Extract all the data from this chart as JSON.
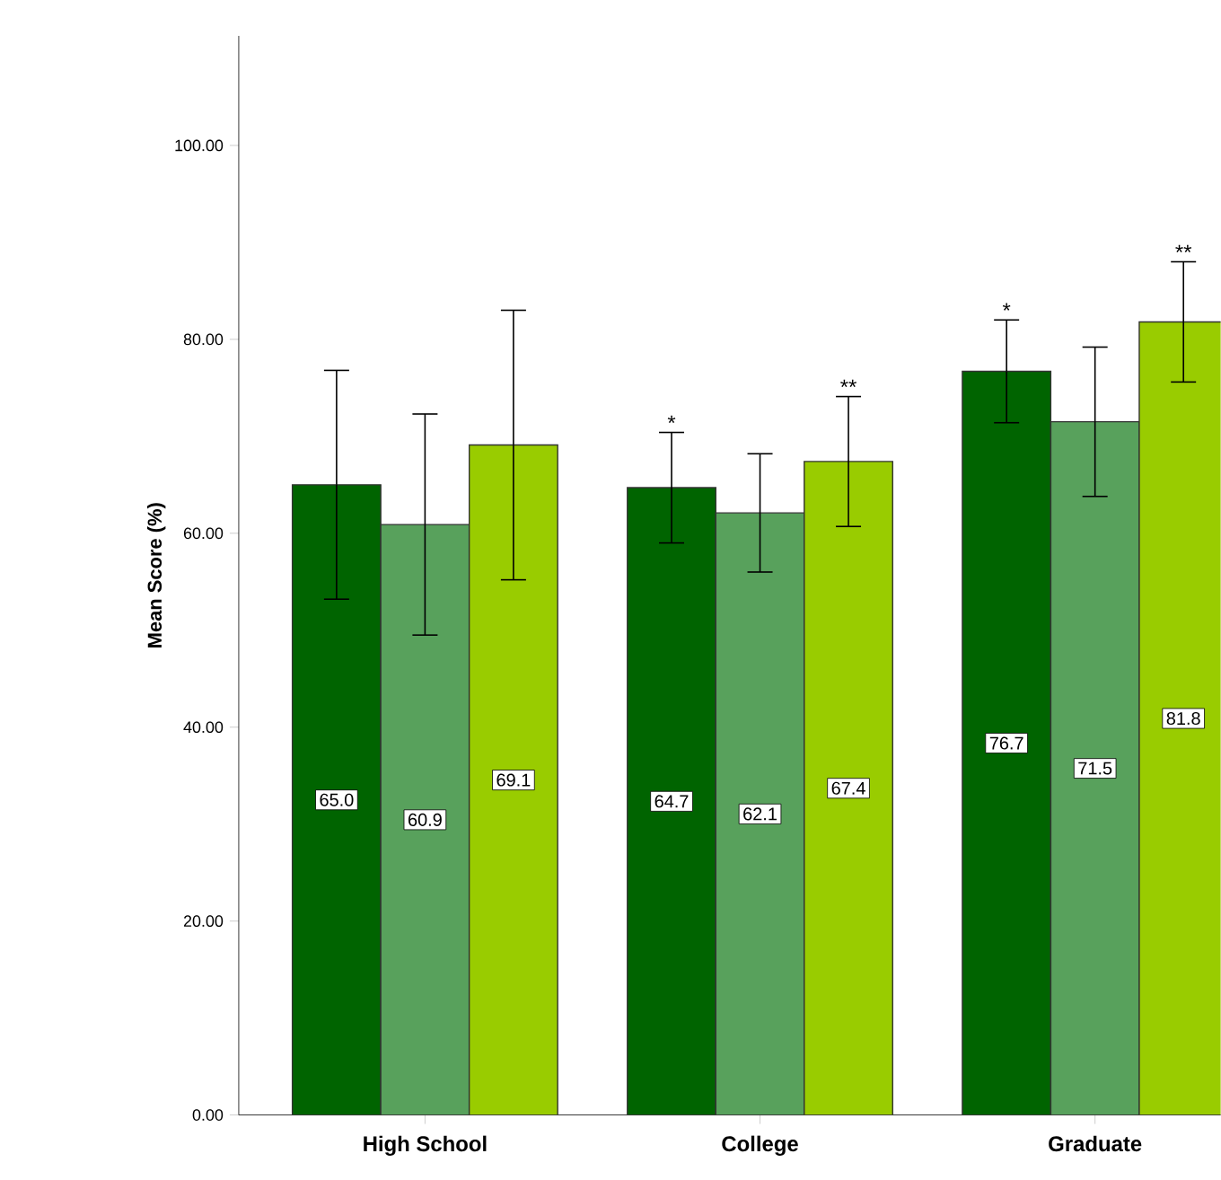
{
  "chart_data": {
    "type": "bar",
    "ylabel": "Mean Score (%)",
    "categories": [
      "High School",
      "College",
      "Graduate"
    ],
    "series": [
      {
        "color": "#006400",
        "values": [
          65.0,
          64.7,
          76.7
        ],
        "errors": [
          11.8,
          5.7,
          5.3
        ],
        "value_labels": [
          "65.0",
          "64.7",
          "76.7"
        ]
      },
      {
        "color": "#58a15c",
        "values": [
          60.9,
          62.1,
          71.5
        ],
        "errors": [
          11.4,
          6.1,
          7.7
        ],
        "value_labels": [
          "60.9",
          "62.1",
          "71.5"
        ]
      },
      {
        "color": "#99cc00",
        "values": [
          69.1,
          67.4,
          81.8
        ],
        "errors": [
          13.9,
          6.7,
          6.2
        ],
        "value_labels": [
          "69.1",
          "67.4",
          "81.8"
        ]
      }
    ],
    "ylim": [
      0,
      111.3
    ],
    "yticks": [
      {
        "value": 0,
        "label": "0.00"
      },
      {
        "value": 20,
        "label": "20.00"
      },
      {
        "value": 40,
        "label": "40.00"
      },
      {
        "value": 60,
        "label": "60.00"
      },
      {
        "value": 80,
        "label": "80.00"
      },
      {
        "value": 100,
        "label": "100.00"
      }
    ],
    "grid": false,
    "annotations": [
      "*",
      "**",
      "*",
      "**"
    ]
  }
}
